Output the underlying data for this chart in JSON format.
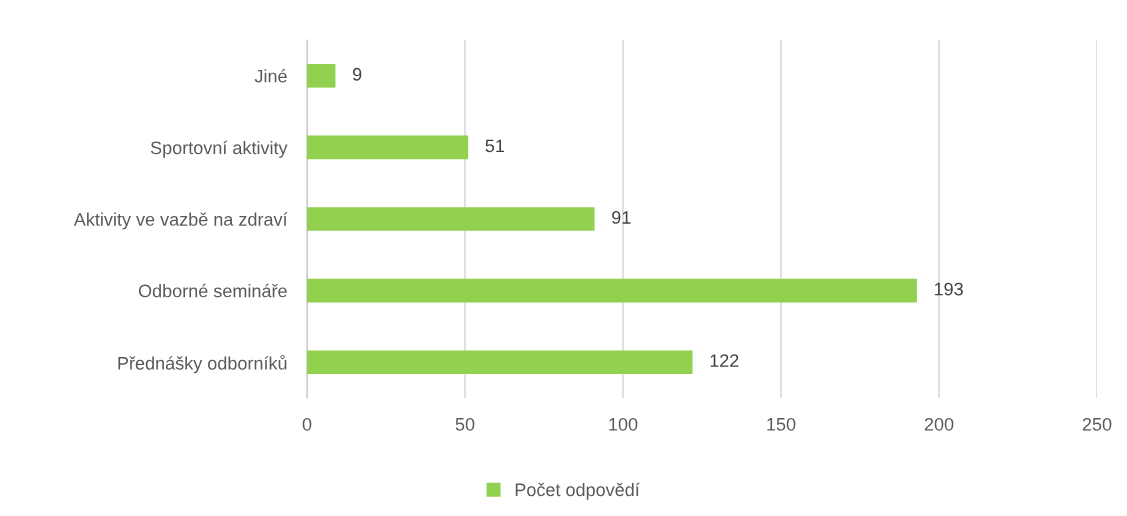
{
  "chart_data": {
    "type": "bar",
    "orientation": "horizontal",
    "categories": [
      "Jiné",
      "Sportovní aktivity",
      "Aktivity ve vazbě na zdraví",
      "Odborné semináře",
      "Přednášky odborníků"
    ],
    "series": [
      {
        "name": "Počet odpovědí",
        "color": "#92d050",
        "values": [
          9,
          51,
          91,
          193,
          122
        ]
      }
    ],
    "xlim": [
      0,
      250
    ],
    "xticks": [
      0,
      50,
      100,
      150,
      200,
      250
    ],
    "grid": "x",
    "legend": "bottom",
    "data_labels": true
  }
}
